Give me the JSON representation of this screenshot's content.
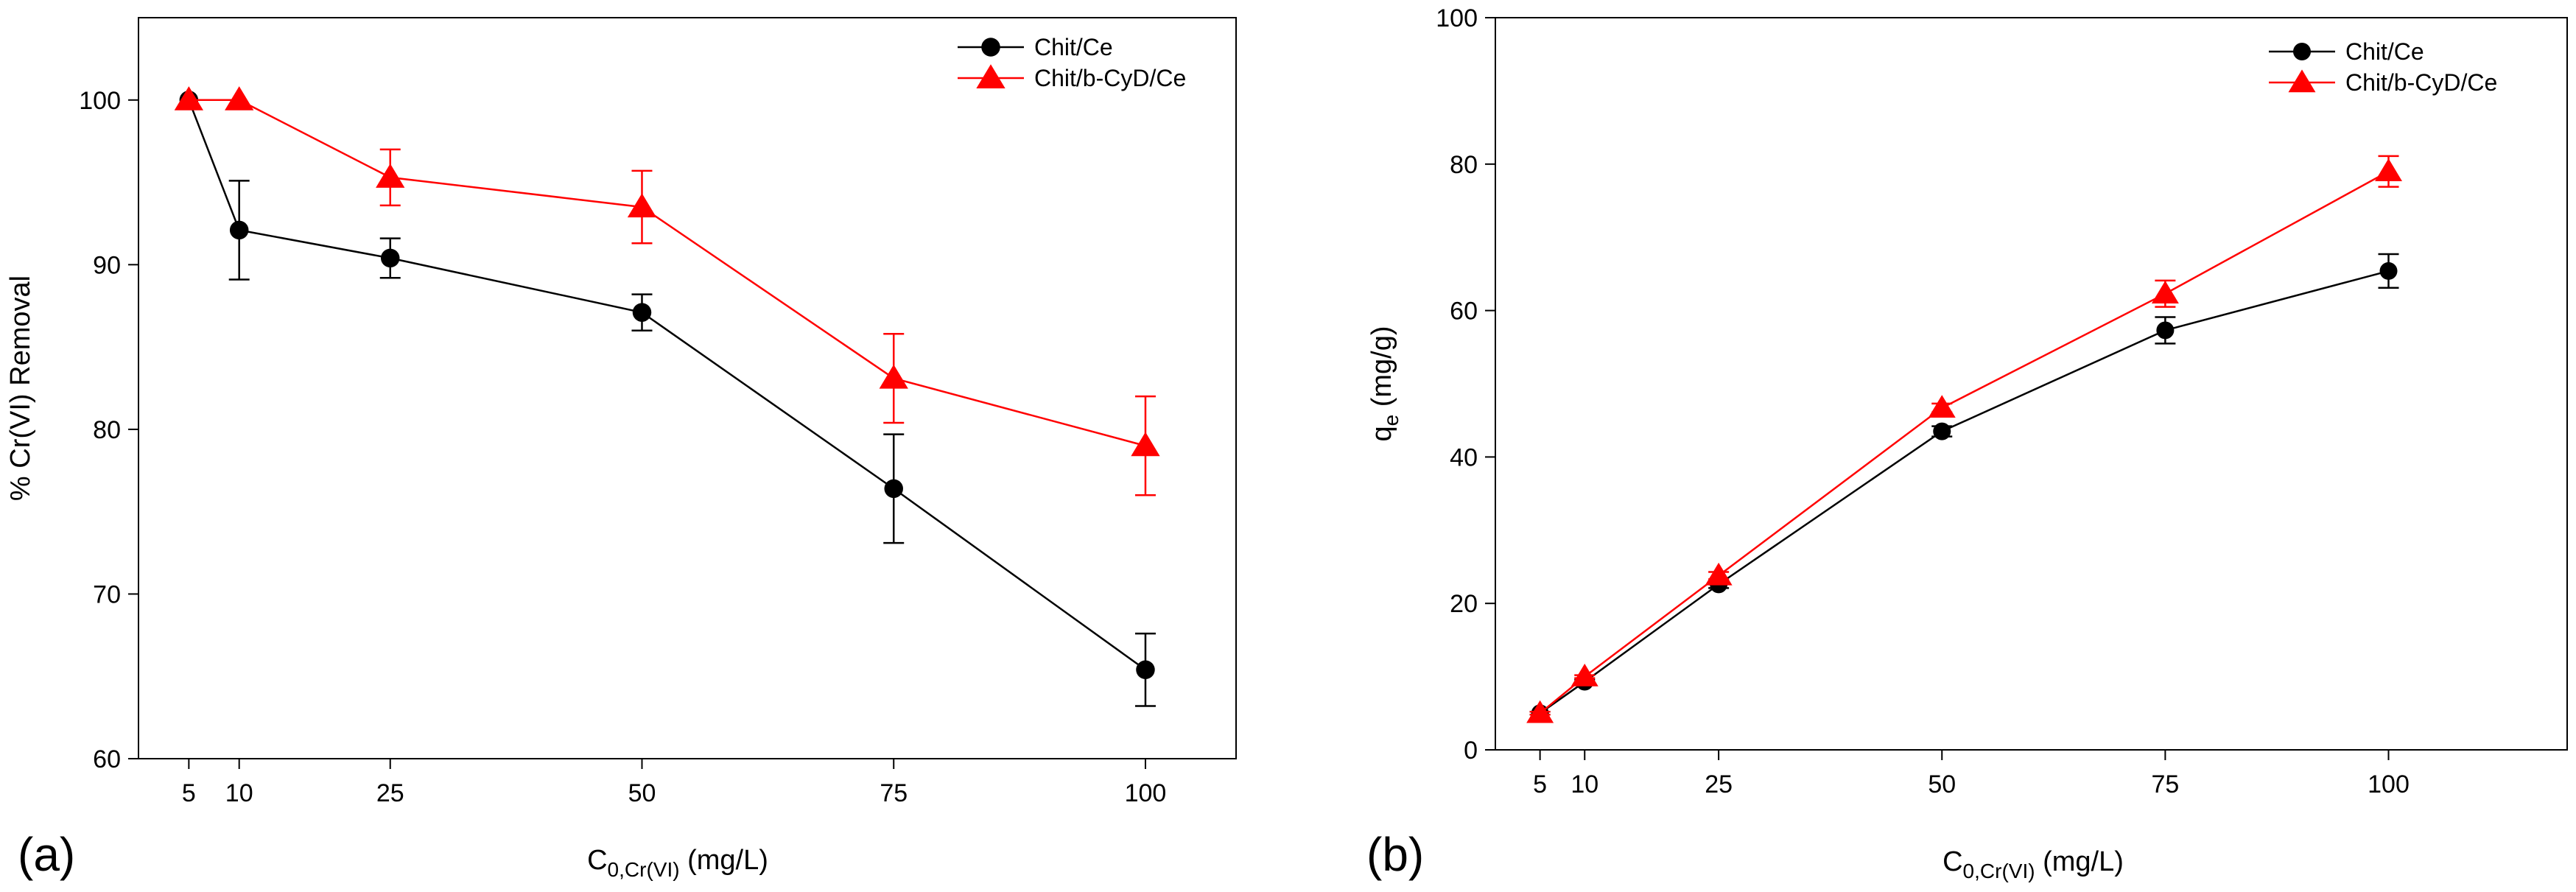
{
  "chart_data": [
    {
      "type": "line",
      "panel_label": "(a)",
      "xlabel": {
        "main": "C",
        "sub": "0,Cr(VI)",
        "rest": " (mg/L)"
      },
      "ylabel": "% Cr(VI) Removal",
      "xlim": [
        0,
        109
      ],
      "ylim": [
        60,
        105
      ],
      "x_ticks": [
        5,
        10,
        25,
        50,
        75,
        100
      ],
      "y_ticks": [
        60,
        70,
        80,
        90,
        100
      ],
      "legend_position": "top-right",
      "series": [
        {
          "name": "Chit/Ce",
          "marker": "circle",
          "color": "#000000",
          "x": [
            5,
            10,
            25,
            50,
            75,
            100
          ],
          "y": [
            100,
            92.1,
            90.4,
            87.1,
            76.4,
            65.4
          ],
          "err": [
            0,
            3.0,
            1.2,
            1.1,
            3.3,
            2.2
          ]
        },
        {
          "name": "Chit/b-CyD/Ce",
          "marker": "triangle",
          "color": "#ff0000",
          "x": [
            5,
            10,
            25,
            50,
            75,
            100
          ],
          "y": [
            100,
            100,
            95.3,
            93.5,
            83.1,
            79.0
          ],
          "err": [
            0,
            0,
            1.7,
            2.2,
            2.7,
            3.0
          ]
        }
      ]
    },
    {
      "type": "line",
      "panel_label": "(b)",
      "xlabel": {
        "main": "C",
        "sub": "0,Cr(VI)",
        "rest": " (mg/L)"
      },
      "ylabel": {
        "main": "q",
        "sub": "e",
        "rest": " (mg/g)"
      },
      "xlim": [
        0,
        120
      ],
      "ylim": [
        0,
        100
      ],
      "x_ticks": [
        5,
        10,
        25,
        50,
        75,
        100
      ],
      "y_ticks": [
        0,
        20,
        40,
        60,
        80,
        100
      ],
      "legend_position": "top-right",
      "series": [
        {
          "name": "Chit/Ce",
          "marker": "circle",
          "color": "#000000",
          "x": [
            5,
            10,
            25,
            50,
            75,
            100
          ],
          "y": [
            5.0,
            9.3,
            22.6,
            43.5,
            57.3,
            65.4
          ],
          "err": [
            0.2,
            0.3,
            0.5,
            0.7,
            1.8,
            2.3
          ]
        },
        {
          "name": "Chit/b-CyD/Ce",
          "marker": "triangle",
          "color": "#ff0000",
          "x": [
            5,
            10,
            25,
            50,
            75,
            100
          ],
          "y": [
            5.0,
            10.0,
            23.8,
            46.7,
            62.3,
            79.0
          ],
          "err": [
            0.2,
            0.2,
            0.5,
            0.6,
            1.8,
            2.1
          ]
        }
      ]
    }
  ]
}
